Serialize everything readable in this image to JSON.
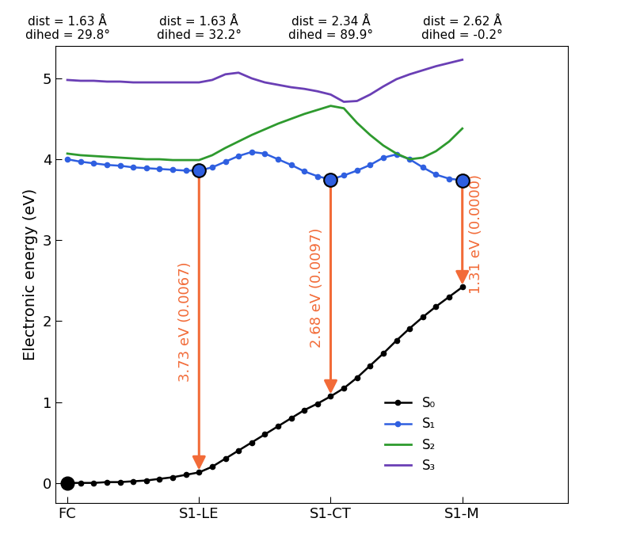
{
  "chart_data": {
    "type": "line",
    "y_label": "Electronic energy (eV)",
    "x": [
      0.0,
      0.1,
      0.2,
      0.3,
      0.4,
      0.5,
      0.6,
      0.7,
      0.8,
      0.9,
      1.0,
      1.1,
      1.2,
      1.3,
      1.4,
      1.5,
      1.6,
      1.7,
      1.8,
      1.9,
      2.0,
      2.1,
      2.2,
      2.3,
      2.4,
      2.5,
      2.6,
      2.7,
      2.8,
      2.9,
      3.0
    ],
    "xlim": [
      -0.09,
      3.8
    ],
    "xticks": [
      {
        "value": 0,
        "label": "FC"
      },
      {
        "value": 1,
        "label": "S1-LE"
      },
      {
        "value": 2,
        "label": "S1-CT"
      },
      {
        "value": 3,
        "label": "S1-M"
      }
    ],
    "ylim": [
      -0.25,
      5.4
    ],
    "yticks": [
      0,
      1,
      2,
      3,
      4,
      5
    ],
    "grid": false,
    "legend": "lower right",
    "series": [
      {
        "name": "S₀",
        "color": "#000000",
        "marker": "o",
        "line_style": "solid",
        "values": [
          0.0,
          0.0,
          0.0,
          0.01,
          0.01,
          0.02,
          0.03,
          0.05,
          0.07,
          0.1,
          0.13,
          0.2,
          0.3,
          0.4,
          0.5,
          0.6,
          0.7,
          0.8,
          0.9,
          0.98,
          1.07,
          1.17,
          1.3,
          1.45,
          1.6,
          1.76,
          1.91,
          2.05,
          2.18,
          2.3,
          2.42
        ]
      },
      {
        "name": "S₁",
        "color": "#2f5fe0",
        "marker": "o",
        "line_style": "solid",
        "values": [
          4.0,
          3.97,
          3.95,
          3.93,
          3.92,
          3.9,
          3.89,
          3.88,
          3.87,
          3.86,
          3.86,
          3.9,
          3.97,
          4.04,
          4.09,
          4.07,
          4.0,
          3.93,
          3.85,
          3.79,
          3.75,
          3.8,
          3.86,
          3.93,
          4.02,
          4.06,
          4.0,
          3.9,
          3.81,
          3.76,
          3.74
        ]
      },
      {
        "name": "S₂",
        "color": "#2e9a2e",
        "marker": "none",
        "line_style": "solid",
        "values": [
          4.07,
          4.05,
          4.04,
          4.03,
          4.02,
          4.01,
          4.0,
          4.0,
          3.99,
          3.99,
          3.99,
          4.05,
          4.14,
          4.22,
          4.3,
          4.37,
          4.44,
          4.5,
          4.56,
          4.61,
          4.66,
          4.63,
          4.45,
          4.3,
          4.17,
          4.07,
          4.0,
          4.02,
          4.1,
          4.22,
          4.38
        ]
      },
      {
        "name": "S₃",
        "color": "#6a3fb5",
        "marker": "none",
        "line_style": "solid",
        "values": [
          4.98,
          4.97,
          4.97,
          4.96,
          4.96,
          4.95,
          4.95,
          4.95,
          4.95,
          4.95,
          4.95,
          4.98,
          5.05,
          5.07,
          5.0,
          4.95,
          4.92,
          4.89,
          4.87,
          4.84,
          4.8,
          4.71,
          4.72,
          4.8,
          4.9,
          4.99,
          5.05,
          5.1,
          5.15,
          5.19,
          5.23
        ]
      }
    ],
    "top_labels": [
      "dist = 1.63 Å\ndihed = 29.8°",
      "dist = 1.63 Å\ndihed = 32.2°",
      "dist = 2.34 Å\ndihed = 89.9°",
      "dist = 2.62 Å\ndihed = -0.2°"
    ],
    "transitions": [
      {
        "x": 1.0,
        "label": "3.73 eV (0.0067)"
      },
      {
        "x": 2.0,
        "label": "2.68 eV (0.0097)"
      },
      {
        "x": 3.0,
        "label": "1.31 eV (0.0000)"
      }
    ]
  }
}
